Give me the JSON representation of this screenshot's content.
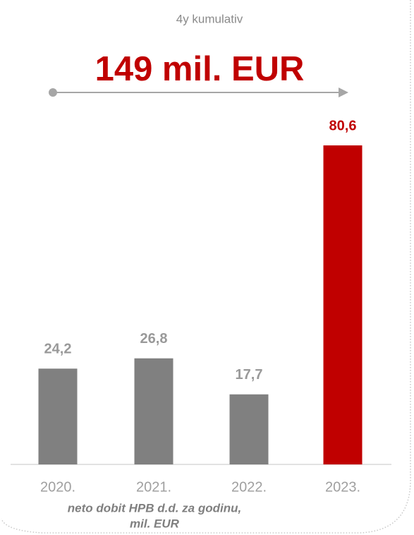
{
  "chart_data": {
    "type": "bar",
    "subtitle": "4y kumulativ",
    "title": "149 mil. EUR",
    "categories": [
      "2020.",
      "2021.",
      "2022.",
      "2023."
    ],
    "values": [
      24.2,
      26.8,
      17.7,
      80.6
    ],
    "value_labels": [
      "24,2",
      "26,8",
      "17,7",
      "80,6"
    ],
    "colors": [
      "#808080",
      "#808080",
      "#808080",
      "#c00000"
    ],
    "note": [
      "neto dobit HPB d.d. za godinu,",
      "mil. EUR"
    ]
  }
}
